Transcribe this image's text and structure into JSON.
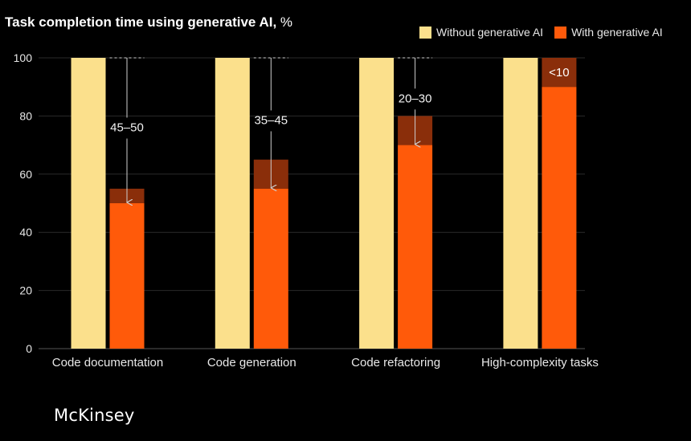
{
  "title": {
    "bold": "Task completion time using generative AI,",
    "unit": " %"
  },
  "legend": [
    {
      "label": "Without generative AI",
      "color": "#fbe08c"
    },
    {
      "label": "With generative AI",
      "color": "#ff5a0a"
    }
  ],
  "brand": "McKinsey",
  "colors": {
    "background": "#000000",
    "without": "#fbe08c",
    "with": "#ff5a0a",
    "savings_band": "#8a2e0a",
    "gridline": "#2a2a2a",
    "annotation_line": "#cfcfcf",
    "text": "#ffffff"
  },
  "chart_data": {
    "type": "bar",
    "categories": [
      "Code documentation",
      "Code generation",
      "Code refactoring",
      "High-complexity tasks"
    ],
    "series": [
      {
        "name": "Without generative AI",
        "values": [
          100,
          100,
          100,
          100
        ]
      },
      {
        "name": "With generative AI",
        "values": [
          50,
          55,
          70,
          90
        ]
      }
    ],
    "savings_range_top": [
      55,
      65,
      80,
      100
    ],
    "annotations": [
      "45–50",
      "35–45",
      "20–30",
      "<10"
    ],
    "ylim": [
      0,
      100
    ],
    "yticks": [
      0,
      20,
      40,
      60,
      80,
      100
    ],
    "grid": true,
    "legend_position": "top-right"
  }
}
